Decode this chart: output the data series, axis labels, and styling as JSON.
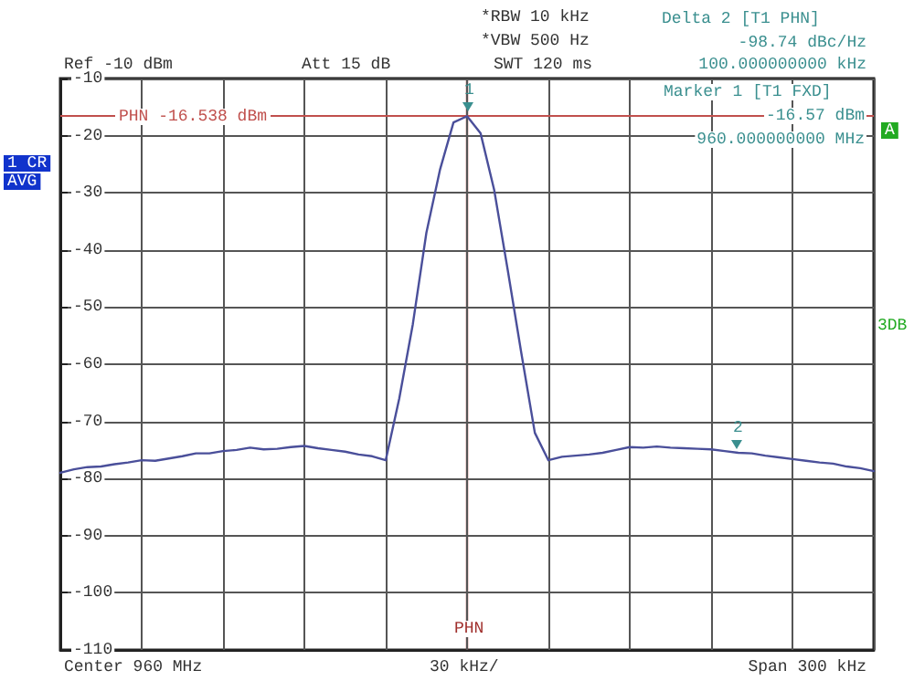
{
  "chart_data": {
    "type": "line",
    "xlabel": "30 kHz/",
    "ylabel": "Ref -10 dBm",
    "categories": [
      null,
      null,
      null,
      null,
      null,
      null,
      null,
      null,
      null,
      null,
      null,
      null,
      null,
      null,
      null,
      null,
      null,
      null,
      null,
      null,
      null,
      null,
      null,
      null,
      null,
      null,
      null,
      null,
      null,
      null,
      null,
      null,
      null,
      null,
      null,
      null,
      null,
      null,
      null,
      null,
      null,
      null,
      null,
      null,
      null,
      null,
      null,
      null,
      null,
      null,
      null,
      null,
      null,
      null,
      null,
      null,
      null,
      null,
      null,
      null,
      null
    ],
    "series": [
      {
        "color": "#4a4f9a",
        "values": [
          -79,
          -78.4,
          -78,
          -77.9,
          -77.5,
          -77.2,
          -76.8,
          -76.9,
          -76.5,
          -76.1,
          -75.6,
          -75.6,
          -75.2,
          -75,
          -74.6,
          -74.9,
          -74.8,
          -74.5,
          -74.3,
          -74.7,
          -75,
          -75.3,
          -75.8,
          -76.1,
          -76.8,
          -66,
          -53,
          -37,
          -26,
          -17.7,
          -16.6,
          -19.6,
          -29.5,
          -43.5,
          -58,
          -72,
          -76.8,
          -76.2,
          -76,
          -75.8,
          -75.5,
          -75,
          -74.5,
          -74.6,
          -74.4,
          -74.6,
          -74.7,
          -74.8,
          -74.9,
          -75.2,
          -75.5,
          -75.6,
          -76,
          -76.3,
          -76.6,
          -76.9,
          -77.2,
          -77.4,
          -77.9,
          -78.2,
          -78.7
        ]
      }
    ],
    "ylim": [
      -110,
      -10
    ],
    "yticks": [
      -110,
      -100,
      -90,
      -80,
      -70,
      -60,
      -50,
      -40,
      -30,
      -20,
      -10
    ],
    "tick_labels": "y",
    "grid": true,
    "line_style": "solid",
    "ref_lines": [
      {
        "axis": "y",
        "value": -16.538,
        "label": "PHN -16.538 dBm",
        "color": "#c0504d"
      }
    ],
    "annotations": [
      "Att 15 dB",
      "*RBW 10 kHz",
      "*VBW 500 Hz",
      "SWT 120 ms",
      "Delta 2 [T1 PHN]",
      "-98.74 dBc/Hz",
      "100.000000000 kHz",
      "Marker 1 [T1 FXD]",
      "-16.57 dBm",
      "960.000000000 MHz",
      "1 CR",
      "AVG",
      "A",
      "3DB",
      "Center 960 MHz",
      "Span 300 kHz",
      "PHN",
      "1",
      "2"
    ]
  }
}
